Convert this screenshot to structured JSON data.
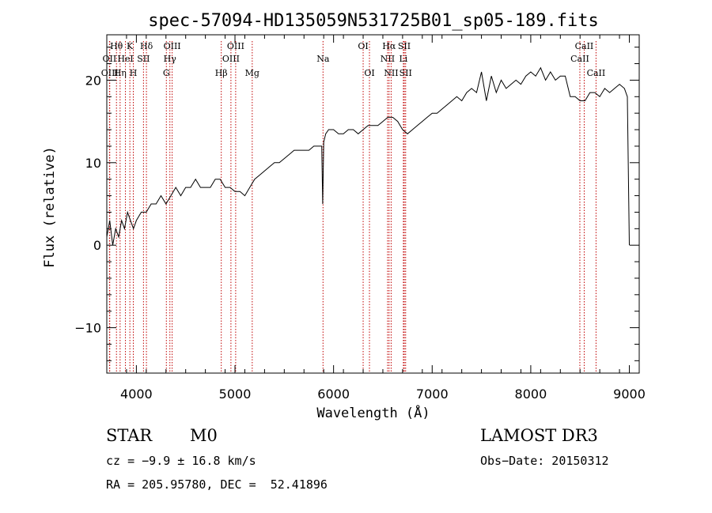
{
  "chart_data": {
    "type": "line",
    "title": "spec-57094-HD135059N531725B01_sp05-189.fits",
    "xlabel": "Wavelength (Å)",
    "ylabel": "Flux (relative)",
    "xlim": [
      3700,
      9100
    ],
    "ylim": [
      -15.5,
      25.5
    ],
    "xticks": [
      4000,
      5000,
      6000,
      7000,
      8000,
      9000
    ],
    "yticks": [
      -10,
      0,
      10,
      20
    ],
    "grid": false,
    "series": [
      {
        "name": "spectrum",
        "x": [
          3700,
          3730,
          3760,
          3790,
          3820,
          3850,
          3880,
          3910,
          3940,
          3970,
          4000,
          4050,
          4100,
          4150,
          4200,
          4250,
          4300,
          4350,
          4400,
          4450,
          4500,
          4550,
          4600,
          4650,
          4700,
          4750,
          4800,
          4850,
          4900,
          4950,
          5000,
          5050,
          5100,
          5150,
          5200,
          5250,
          5300,
          5350,
          5400,
          5450,
          5500,
          5550,
          5600,
          5650,
          5700,
          5750,
          5800,
          5850,
          5880,
          5890,
          5900,
          5920,
          5950,
          6000,
          6050,
          6100,
          6150,
          6200,
          6250,
          6300,
          6350,
          6400,
          6450,
          6500,
          6550,
          6600,
          6650,
          6700,
          6750,
          6800,
          6850,
          6900,
          6950,
          7000,
          7050,
          7100,
          7150,
          7200,
          7250,
          7300,
          7350,
          7400,
          7450,
          7500,
          7550,
          7600,
          7650,
          7700,
          7750,
          7800,
          7850,
          7900,
          7950,
          8000,
          8050,
          8100,
          8150,
          8200,
          8250,
          8300,
          8350,
          8400,
          8450,
          8500,
          8550,
          8600,
          8650,
          8700,
          8750,
          8800,
          8850,
          8900,
          8950,
          8980,
          9000
        ],
        "y": [
          1,
          3,
          0,
          2,
          1,
          3,
          2,
          4,
          3,
          2,
          3,
          4,
          4,
          5,
          5,
          6,
          5,
          6,
          7,
          6,
          7,
          7,
          8,
          7,
          7,
          7,
          8,
          8,
          7,
          7,
          6.5,
          6.5,
          6,
          7,
          8,
          8.5,
          9,
          9.5,
          10,
          10,
          10.5,
          11,
          11.5,
          11.5,
          11.5,
          11.5,
          12,
          12,
          12,
          5,
          12.5,
          13.5,
          14,
          14,
          13.5,
          13.5,
          14,
          14,
          13.5,
          14,
          14.5,
          14.5,
          14.5,
          15,
          15.5,
          15.5,
          15,
          14,
          13.5,
          14,
          14.5,
          15,
          15.5,
          16,
          16,
          16.5,
          17,
          17.5,
          18,
          17.5,
          18.5,
          19,
          18.5,
          21,
          17.5,
          20.5,
          18.5,
          20,
          19,
          19.5,
          20,
          19.5,
          20.5,
          21,
          20.5,
          21.5,
          20,
          21,
          20,
          20.5,
          20.5,
          18,
          18,
          17.5,
          17.5,
          18.5,
          18.5,
          18,
          19,
          18.5,
          19,
          19.5,
          19,
          18,
          0
        ]
      }
    ],
    "line_markers": [
      {
        "name": "Hθ",
        "wavelength": 3798,
        "row": 0
      },
      {
        "name": "OII",
        "wavelength": 3727,
        "row": 1
      },
      {
        "name": "OIII",
        "wavelength": 3730,
        "row": 2
      },
      {
        "name": "Hη",
        "wavelength": 3835,
        "row": 2
      },
      {
        "name": "K",
        "wavelength": 3934,
        "row": 0
      },
      {
        "name": "HeI",
        "wavelength": 3889,
        "row": 1
      },
      {
        "name": "H",
        "wavelength": 3969,
        "row": 2
      },
      {
        "name": "Hδ",
        "wavelength": 4102,
        "row": 0
      },
      {
        "name": "SII",
        "wavelength": 4072,
        "row": 1
      },
      {
        "name": "OIII",
        "wavelength": 4363,
        "row": 0
      },
      {
        "name": "Hγ",
        "wavelength": 4340,
        "row": 1
      },
      {
        "name": "G",
        "wavelength": 4304,
        "row": 2
      },
      {
        "name": "Hβ",
        "wavelength": 4861,
        "row": 2
      },
      {
        "name": "OIII",
        "wavelength": 5007,
        "row": 0
      },
      {
        "name": "OIII",
        "wavelength": 4959,
        "row": 1
      },
      {
        "name": "Mg",
        "wavelength": 5175,
        "row": 2
      },
      {
        "name": "Na",
        "wavelength": 5893,
        "row": 1
      },
      {
        "name": "OI",
        "wavelength": 6300,
        "row": 0
      },
      {
        "name": "OI",
        "wavelength": 6364,
        "row": 2
      },
      {
        "name": "Hα",
        "wavelength": 6563,
        "row": 0
      },
      {
        "name": "NII",
        "wavelength": 6548,
        "row": 1
      },
      {
        "name": "NII",
        "wavelength": 6584,
        "row": 2
      },
      {
        "name": "SII",
        "wavelength": 6717,
        "row": 0
      },
      {
        "name": "Li",
        "wavelength": 6708,
        "row": 1
      },
      {
        "name": "SII",
        "wavelength": 6731,
        "row": 2
      },
      {
        "name": "CaII",
        "wavelength": 8542,
        "row": 0
      },
      {
        "name": "CaII",
        "wavelength": 8498,
        "row": 1
      },
      {
        "name": "CaII",
        "wavelength": 8662,
        "row": 2
      }
    ]
  },
  "info": {
    "object_class": "STAR",
    "subclass": "M0",
    "survey": "LAMOST DR3",
    "cz": "cz = −9.9 ± 16.8 km/s",
    "obs_date": "Obs−Date: 20150312",
    "coords": "RA = 205.95780, DEC =  52.41896"
  },
  "colors": {
    "axis": "#000000",
    "spectrum": "#000000",
    "marker_line": "#c00000",
    "background": "#ffffff"
  }
}
